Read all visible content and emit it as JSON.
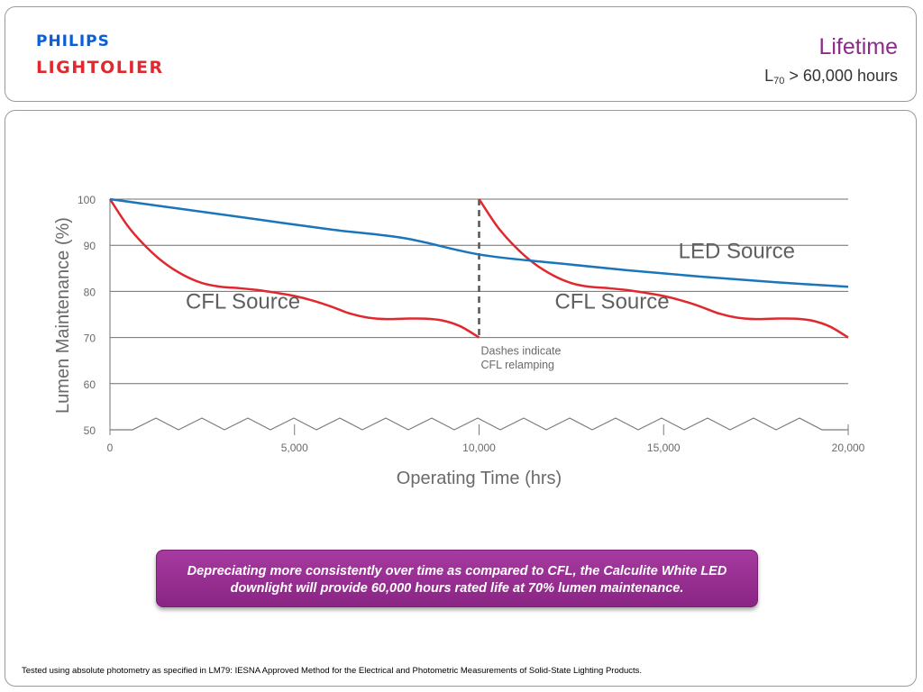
{
  "header": {
    "logo_top": "PHILIPS",
    "logo_bottom": "LIGHTOLIER",
    "title": "Lifetime",
    "subtitle_prefix": "L",
    "subtitle_sub": "70",
    "subtitle_rest": " > 60,000 hours"
  },
  "colors": {
    "philips_blue": "#0b5ed7",
    "lightolier_red": "#e0282e",
    "title_purple": "#8e2a8a",
    "led_line": "#1b75bb",
    "cfl_line": "#e0282e",
    "callout_top": "#a63aa0",
    "callout_bottom": "#8a2584"
  },
  "chart_data": {
    "type": "line",
    "xlabel": "Operating Time (hrs)",
    "ylabel": "Lumen Maintenance (%)",
    "xlim": [
      0,
      20000
    ],
    "ylim": [
      50,
      100
    ],
    "x_ticks": [
      {
        "value": 0,
        "label": "0"
      },
      {
        "value": 5000,
        "label": "5,000"
      },
      {
        "value": 10000,
        "label": "10,000"
      },
      {
        "value": 15000,
        "label": "15,000"
      },
      {
        "value": 20000,
        "label": "20,000"
      }
    ],
    "y_ticks": [
      {
        "value": 100,
        "label": "100"
      },
      {
        "value": 90,
        "label": "90"
      },
      {
        "value": 80,
        "label": "80"
      },
      {
        "value": 70,
        "label": "70"
      },
      {
        "value": 60,
        "label": "60"
      },
      {
        "value": 50,
        "label": "50"
      }
    ],
    "grid": true,
    "series": [
      {
        "name": "LED Source",
        "points": [
          [
            0,
            100
          ],
          [
            2000,
            97.8
          ],
          [
            4000,
            95.6
          ],
          [
            6000,
            93.4
          ],
          [
            8000,
            91.5
          ],
          [
            10000,
            88
          ],
          [
            12000,
            86.2
          ],
          [
            14000,
            84.6
          ],
          [
            16000,
            83.2
          ],
          [
            18000,
            82
          ],
          [
            20000,
            81
          ]
        ]
      },
      {
        "name": "CFL Source",
        "segments": [
          [
            [
              0,
              100
            ],
            [
              500,
              94
            ],
            [
              1000,
              89.5
            ],
            [
              1500,
              86
            ],
            [
              2000,
              83.5
            ],
            [
              2500,
              81.8
            ],
            [
              3000,
              81
            ],
            [
              3500,
              80.7
            ],
            [
              4000,
              80.3
            ],
            [
              4500,
              79.7
            ],
            [
              5000,
              79
            ],
            [
              5500,
              78
            ],
            [
              6000,
              76.7
            ],
            [
              6500,
              75.2
            ],
            [
              7000,
              74.3
            ],
            [
              7500,
              74
            ],
            [
              8000,
              74.1
            ],
            [
              8500,
              74.1
            ],
            [
              9000,
              73.7
            ],
            [
              9500,
              72.4
            ],
            [
              10000,
              70
            ]
          ],
          [
            [
              10000,
              100
            ],
            [
              10500,
              94
            ],
            [
              11000,
              89.5
            ],
            [
              11500,
              86
            ],
            [
              12000,
              83.5
            ],
            [
              12500,
              81.8
            ],
            [
              13000,
              81
            ],
            [
              13500,
              80.7
            ],
            [
              14000,
              80.3
            ],
            [
              14500,
              79.7
            ],
            [
              15000,
              79
            ],
            [
              15500,
              78
            ],
            [
              16000,
              76.7
            ],
            [
              16500,
              75.2
            ],
            [
              17000,
              74.3
            ],
            [
              17500,
              74
            ],
            [
              18000,
              74.1
            ],
            [
              18500,
              74.1
            ],
            [
              19000,
              73.7
            ],
            [
              19500,
              72.4
            ],
            [
              20000,
              70
            ]
          ]
        ]
      }
    ],
    "relamp_marker": {
      "x": 10000,
      "y_from": 70,
      "y_to": 100
    },
    "annotations": [
      {
        "id": "led",
        "text": "LED Source",
        "x": 15400,
        "y": 87.2
      },
      {
        "id": "cfl1",
        "text": "CFL Source",
        "x": 2050,
        "y": 76.3
      },
      {
        "id": "cfl2",
        "text": "CFL Source",
        "x": 12050,
        "y": 76.3
      },
      {
        "id": "dash1",
        "text": "Dashes indicate",
        "x": 10000,
        "y": 66.3
      },
      {
        "id": "dash2",
        "text": "CFL relamping",
        "x": 10000,
        "y": 63.3
      }
    ]
  },
  "callout": {
    "text": "Depreciating more consistently over time as compared to CFL, the Calculite White LED downlight will provide 60,000 hours rated life at 70% lumen maintenance."
  },
  "footnote": "Tested using absolute photometry as specified in LM79: IESNA Approved Method for the Electrical and Photometric Measurements of Solid-State Lighting Products."
}
